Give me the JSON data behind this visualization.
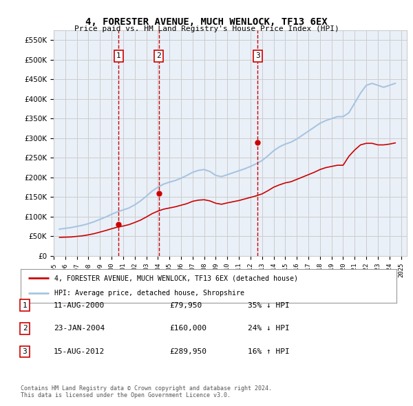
{
  "title": "4, FORESTER AVENUE, MUCH WENLOCK, TF13 6EX",
  "subtitle": "Price paid vs. HM Land Registry's House Price Index (HPI)",
  "ylim": [
    0,
    575000
  ],
  "ytick_vals": [
    0,
    50000,
    100000,
    150000,
    200000,
    250000,
    300000,
    350000,
    400000,
    450000,
    500000,
    550000
  ],
  "xmin": 1995.0,
  "xmax": 2025.5,
  "xticks": [
    1995,
    1996,
    1997,
    1998,
    1999,
    2000,
    2001,
    2002,
    2003,
    2004,
    2005,
    2006,
    2007,
    2008,
    2009,
    2010,
    2011,
    2012,
    2013,
    2014,
    2015,
    2016,
    2017,
    2018,
    2019,
    2020,
    2021,
    2022,
    2023,
    2024,
    2025
  ],
  "hpi_color": "#a8c4e0",
  "sale_color": "#cc0000",
  "bg_color": "#eaf0f8",
  "plot_bg": "#ffffff",
  "grid_color": "#cccccc",
  "sale_points": [
    {
      "year": 2000.617,
      "price": 79950,
      "label": "1"
    },
    {
      "year": 2004.067,
      "price": 160000,
      "label": "2"
    },
    {
      "year": 2012.617,
      "price": 289950,
      "label": "3"
    }
  ],
  "legend1": "4, FORESTER AVENUE, MUCH WENLOCK, TF13 6EX (detached house)",
  "legend2": "HPI: Average price, detached house, Shropshire",
  "table_rows": [
    {
      "num": "1",
      "date": "11-AUG-2000",
      "price": "£79,950",
      "hpi": "35% ↓ HPI"
    },
    {
      "num": "2",
      "date": "23-JAN-2004",
      "price": "£160,000",
      "hpi": "24% ↓ HPI"
    },
    {
      "num": "3",
      "date": "15-AUG-2012",
      "price": "£289,950",
      "hpi": "16% ↑ HPI"
    }
  ],
  "footer": "Contains HM Land Registry data © Crown copyright and database right 2024.\nThis data is licensed under the Open Government Licence v3.0.",
  "hpi_data_x": [
    1995.5,
    1996.0,
    1996.5,
    1997.0,
    1997.5,
    1998.0,
    1998.5,
    1999.0,
    1999.5,
    2000.0,
    2000.5,
    2001.0,
    2001.5,
    2002.0,
    2002.5,
    2003.0,
    2003.5,
    2004.0,
    2004.5,
    2005.0,
    2005.5,
    2006.0,
    2006.5,
    2007.0,
    2007.5,
    2008.0,
    2008.5,
    2009.0,
    2009.5,
    2010.0,
    2010.5,
    2011.0,
    2011.5,
    2012.0,
    2012.5,
    2013.0,
    2013.5,
    2014.0,
    2014.5,
    2015.0,
    2015.5,
    2016.0,
    2016.5,
    2017.0,
    2017.5,
    2018.0,
    2018.5,
    2019.0,
    2019.5,
    2020.0,
    2020.5,
    2021.0,
    2021.5,
    2022.0,
    2022.5,
    2023.0,
    2023.5,
    2024.0,
    2024.5
  ],
  "hpi_data_y": [
    68000,
    70000,
    72000,
    75000,
    78000,
    82000,
    87000,
    93000,
    99000,
    106000,
    112000,
    117000,
    122000,
    130000,
    140000,
    152000,
    165000,
    175000,
    183000,
    188000,
    192000,
    198000,
    205000,
    213000,
    218000,
    220000,
    215000,
    205000,
    202000,
    207000,
    212000,
    217000,
    222000,
    228000,
    235000,
    243000,
    255000,
    268000,
    278000,
    285000,
    290000,
    298000,
    308000,
    318000,
    328000,
    338000,
    345000,
    350000,
    355000,
    355000,
    365000,
    390000,
    415000,
    435000,
    440000,
    435000,
    430000,
    435000,
    440000
  ],
  "red_hpi_x": [
    1995.5,
    1996.0,
    1996.5,
    1997.0,
    1997.5,
    1998.0,
    1998.5,
    1999.0,
    1999.5,
    2000.0,
    2000.5,
    2001.0,
    2001.5,
    2002.0,
    2002.5,
    2003.0,
    2003.5,
    2004.0,
    2004.5,
    2005.0,
    2005.5,
    2006.0,
    2006.5,
    2007.0,
    2007.5,
    2008.0,
    2008.5,
    2009.0,
    2009.5,
    2010.0,
    2010.5,
    2011.0,
    2011.5,
    2012.0,
    2012.5,
    2013.0,
    2013.5,
    2014.0,
    2014.5,
    2015.0,
    2015.5,
    2016.0,
    2016.5,
    2017.0,
    2017.5,
    2018.0,
    2018.5,
    2019.0,
    2019.5,
    2020.0,
    2020.5,
    2021.0,
    2021.5,
    2022.0,
    2022.5,
    2023.0,
    2023.5,
    2024.0,
    2024.5
  ],
  "red_hpi_y": [
    47000,
    47500,
    48000,
    49500,
    51000,
    53500,
    56500,
    60500,
    64500,
    69000,
    73000,
    76000,
    79500,
    85000,
    91000,
    99000,
    107500,
    114000,
    119000,
    122000,
    125000,
    129000,
    133000,
    139000,
    142000,
    143000,
    140000,
    134000,
    131500,
    135000,
    138000,
    141000,
    145000,
    149000,
    153000,
    158000,
    166000,
    175000,
    181000,
    186000,
    189000,
    195000,
    201000,
    207000,
    213000,
    220000,
    225000,
    228000,
    231000,
    231000,
    254000,
    270000,
    283000,
    287000,
    287000,
    283000,
    283000,
    285000,
    288000
  ]
}
